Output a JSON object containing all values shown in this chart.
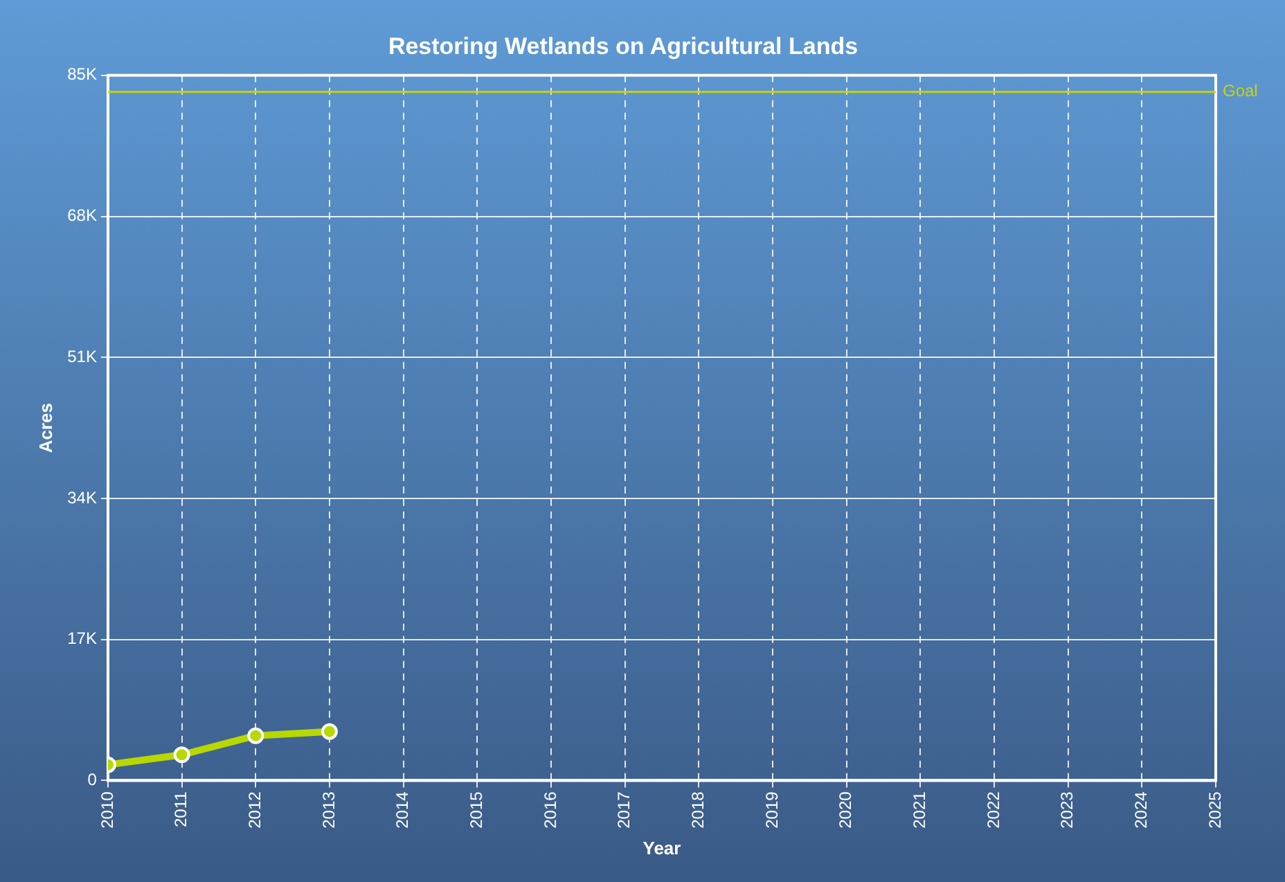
{
  "chart_data": {
    "type": "line",
    "title": "Restoring Wetlands on Agricultural Lands",
    "xlabel": "Year",
    "ylabel": "Acres",
    "x": [
      2010,
      2011,
      2012,
      2013
    ],
    "series": [
      {
        "color": "#b8d800",
        "values": [
          1900,
          3100,
          5400,
          5900
        ]
      }
    ],
    "xlim": [
      2010,
      2025
    ],
    "xticks": [
      2010,
      2011,
      2012,
      2013,
      2014,
      2015,
      2016,
      2017,
      2018,
      2019,
      2020,
      2021,
      2022,
      2023,
      2024,
      2025
    ],
    "ylim": [
      0,
      85000
    ],
    "yticks": [
      {
        "value": 0,
        "label": "0"
      },
      {
        "value": 17000,
        "label": "17K"
      },
      {
        "value": 34000,
        "label": "34K"
      },
      {
        "value": 51000,
        "label": "51K"
      },
      {
        "value": 68000,
        "label": "68K"
      },
      {
        "value": 85000,
        "label": "85K"
      }
    ],
    "ref_lines": [
      {
        "axis": "y",
        "value": 83000,
        "label": "Goal",
        "color": "#c8d400"
      }
    ],
    "grid": true,
    "legend": false,
    "marker": "circle",
    "line_style": "solid"
  }
}
